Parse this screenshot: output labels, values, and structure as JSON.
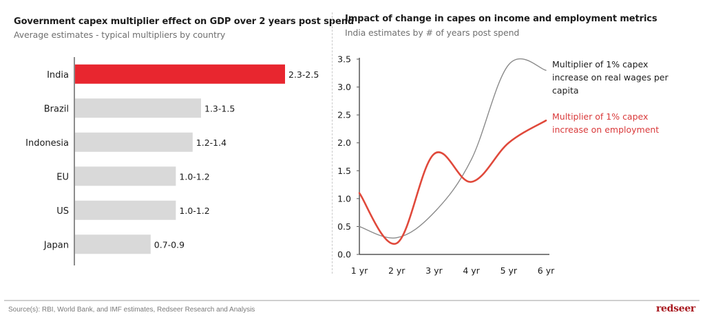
{
  "left": {
    "title": "Government capex multiplier effect on GDP over 2 years post spend",
    "subtitle": "Average estimates - typical multipliers by country"
  },
  "right": {
    "title": "Impact of change in capes on income and employment metrics",
    "subtitle": "India estimates by # of years post spend",
    "legend": {
      "wages_lines": [
        "Multiplier of 1% capex",
        "increase on real wages per",
        "capita"
      ],
      "employment_lines": [
        "Multiplier of 1% capex",
        "increase on employment"
      ]
    }
  },
  "footer": {
    "source": "Source(s): RBI, World Bank, and IMF estimates, Redseer Research and Analysis",
    "logo": "redseer"
  },
  "colors": {
    "highlight": "#e8262f",
    "bar": "#d9d9d9",
    "wages_line": "#8a8a8a",
    "employment_line": "#e0493b",
    "axis": "#555555"
  },
  "chart_data": [
    {
      "type": "bar",
      "orientation": "horizontal",
      "title": "Government capex multiplier effect on GDP over 2 years post spend",
      "subtitle": "Average estimates - typical multipliers by country",
      "categories": [
        "India",
        "Brazil",
        "Indonesia",
        "EU",
        "US",
        "Japan"
      ],
      "ranges": [
        [
          2.3,
          2.5
        ],
        [
          1.3,
          1.5
        ],
        [
          1.2,
          1.4
        ],
        [
          1.0,
          1.2
        ],
        [
          1.0,
          1.2
        ],
        [
          0.7,
          0.9
        ]
      ],
      "values": [
        2.5,
        1.5,
        1.4,
        1.2,
        1.2,
        0.9
      ],
      "labels": [
        "2.3-2.5",
        "1.3-1.5",
        "1.2-1.4",
        "1.0-1.2",
        "1.0-1.2",
        "0.7-0.9"
      ],
      "highlight": "India",
      "xlim": [
        0,
        2.5
      ],
      "grid": false
    },
    {
      "type": "line",
      "title": "Impact of change in capes on income and employment metrics",
      "subtitle": "India estimates by # of years post spend",
      "x": [
        "1 yr",
        "2 yr",
        "3 yr",
        "4 yr",
        "5 yr",
        "6 yr"
      ],
      "series": [
        {
          "name": "Multiplier of 1% capex increase on real wages per capita",
          "values": [
            0.5,
            0.3,
            0.75,
            1.7,
            3.4,
            3.3
          ]
        },
        {
          "name": "Multiplier of 1% capex increase on employment",
          "values": [
            1.1,
            0.2,
            1.8,
            1.3,
            2.0,
            2.4
          ]
        }
      ],
      "yticks": [
        "0.0",
        "0.5",
        "1.0",
        "1.5",
        "2.0",
        "2.5",
        "3.0",
        "3.5"
      ],
      "ylim": [
        0,
        3.5
      ],
      "xlabel": "",
      "ylabel": "",
      "legend": "right",
      "grid": false
    }
  ]
}
